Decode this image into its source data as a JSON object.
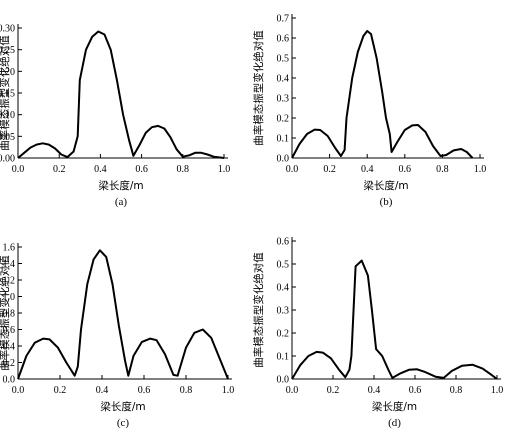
{
  "chart_data": [
    {
      "type": "line",
      "panel_label": "(a)",
      "xlabel": "梁长度/m",
      "ylabel": "曲率模态振型变化绝对值",
      "xlim": [
        0,
        1.0
      ],
      "ylim": [
        0,
        0.3
      ],
      "xticks": [
        "0.0",
        "0.2",
        "0.4",
        "0.6",
        "0.8",
        "1.0"
      ],
      "yticks": [
        "0.00",
        "0.05",
        "0.10",
        "0.15",
        "0.20",
        "0.25",
        "0.30"
      ],
      "series": [
        {
          "x": [
            0,
            0.03,
            0.06,
            0.09,
            0.12,
            0.15,
            0.18,
            0.21,
            0.24,
            0.27,
            0.29,
            0.3,
            0.33,
            0.36,
            0.39,
            0.42,
            0.45,
            0.48,
            0.51,
            0.54,
            0.56,
            0.59,
            0.62,
            0.65,
            0.68,
            0.71,
            0.74,
            0.77,
            0.8,
            0.83,
            0.86,
            0.89,
            0.92,
            0.95,
            1.0
          ],
          "y": [
            0,
            0.012,
            0.024,
            0.031,
            0.034,
            0.031,
            0.022,
            0.008,
            0.002,
            0.015,
            0.05,
            0.18,
            0.25,
            0.28,
            0.292,
            0.285,
            0.25,
            0.18,
            0.1,
            0.04,
            0.005,
            0.03,
            0.058,
            0.071,
            0.074,
            0.068,
            0.048,
            0.02,
            0.003,
            0.006,
            0.012,
            0.012,
            0.008,
            0.003,
            0
          ]
        }
      ]
    },
    {
      "type": "line",
      "panel_label": "(b)",
      "xlabel": "梁长度/m",
      "ylabel": "曲率模态振型变化绝对值",
      "xlim": [
        0,
        1.0
      ],
      "ylim": [
        0,
        0.7
      ],
      "xticks": [
        "0.0",
        "0.2",
        "0.4",
        "0.6",
        "0.8",
        "1.0"
      ],
      "yticks": [
        "0.0",
        "0.1",
        "0.2",
        "0.3",
        "0.4",
        "0.5",
        "0.6",
        "0.7"
      ],
      "series": [
        {
          "x": [
            0,
            0.04,
            0.08,
            0.12,
            0.15,
            0.19,
            0.23,
            0.26,
            0.28,
            0.29,
            0.32,
            0.35,
            0.38,
            0.4,
            0.42,
            0.45,
            0.48,
            0.5,
            0.52,
            0.53,
            0.56,
            0.6,
            0.64,
            0.67,
            0.71,
            0.75,
            0.79,
            0.82,
            0.86,
            0.9,
            0.93,
            0.96
          ],
          "y": [
            0,
            0.07,
            0.12,
            0.142,
            0.14,
            0.11,
            0.05,
            0.01,
            0.04,
            0.2,
            0.4,
            0.53,
            0.61,
            0.635,
            0.62,
            0.5,
            0.33,
            0.2,
            0.12,
            0.03,
            0.08,
            0.14,
            0.163,
            0.165,
            0.13,
            0.06,
            0.01,
            0.015,
            0.038,
            0.045,
            0.03,
            0
          ]
        }
      ]
    },
    {
      "type": "line",
      "panel_label": "(c)",
      "xlabel": "梁长度/m",
      "ylabel": "曲率模态振型变化绝对值",
      "xlim": [
        0,
        1.0
      ],
      "ylim": [
        0,
        1.6
      ],
      "xticks": [
        "0.0",
        "0.2",
        "0.4",
        "0.6",
        "0.8",
        "1.0"
      ],
      "yticks": [
        "0.0",
        "0.2",
        "0.4",
        "0.6",
        "0.8",
        "1.0",
        "1.2",
        "1.4",
        "1.6"
      ],
      "series": [
        {
          "x": [
            0,
            0.04,
            0.08,
            0.12,
            0.15,
            0.19,
            0.23,
            0.27,
            0.285,
            0.3,
            0.33,
            0.36,
            0.39,
            0.42,
            0.45,
            0.48,
            0.51,
            0.525,
            0.55,
            0.59,
            0.63,
            0.66,
            0.7,
            0.74,
            0.76,
            0.8,
            0.84,
            0.88,
            0.92,
            0.96,
            1.0
          ],
          "y": [
            0,
            0.28,
            0.44,
            0.49,
            0.48,
            0.38,
            0.2,
            0.04,
            0.15,
            0.6,
            1.15,
            1.45,
            1.56,
            1.48,
            1.15,
            0.65,
            0.22,
            0.04,
            0.28,
            0.45,
            0.49,
            0.47,
            0.3,
            0.05,
            0.04,
            0.38,
            0.56,
            0.6,
            0.5,
            0.25,
            0
          ]
        }
      ]
    },
    {
      "type": "line",
      "panel_label": "(d)",
      "xlabel": "梁长度/m",
      "ylabel": "曲率模态振型变化绝对值",
      "xlim": [
        0,
        1.0
      ],
      "ylim": [
        0,
        0.6
      ],
      "xticks": [
        "0.0",
        "0.2",
        "0.4",
        "0.6",
        "0.8",
        "1.0"
      ],
      "yticks": [
        "0.0",
        "0.1",
        "0.2",
        "0.3",
        "0.4",
        "0.5",
        "0.6"
      ],
      "series": [
        {
          "x": [
            0,
            0.04,
            0.08,
            0.12,
            0.15,
            0.19,
            0.23,
            0.26,
            0.28,
            0.29,
            0.31,
            0.34,
            0.37,
            0.39,
            0.41,
            0.44,
            0.47,
            0.49,
            0.53,
            0.57,
            0.61,
            0.65,
            0.7,
            0.74,
            0.78,
            0.83,
            0.88,
            0.93,
            0.97,
            1.0
          ],
          "y": [
            0,
            0.06,
            0.1,
            0.118,
            0.115,
            0.09,
            0.04,
            0.008,
            0.04,
            0.1,
            0.49,
            0.515,
            0.45,
            0.3,
            0.13,
            0.1,
            0.04,
            0.005,
            0.025,
            0.04,
            0.042,
            0.03,
            0.01,
            0.005,
            0.035,
            0.058,
            0.062,
            0.045,
            0.02,
            0
          ]
        }
      ]
    }
  ]
}
